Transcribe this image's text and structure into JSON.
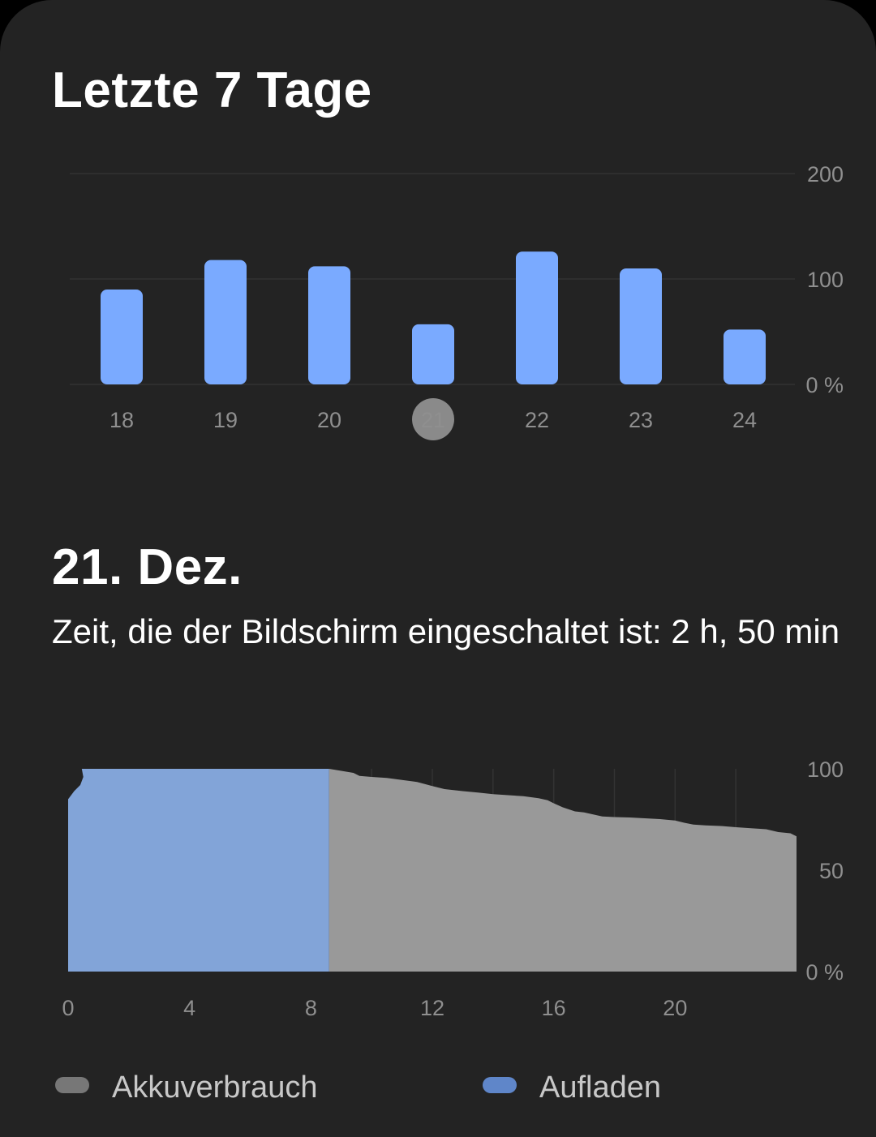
{
  "colors": {
    "background": "#232323",
    "bar": "#7aaaff",
    "charging": "#82a4d8",
    "usage": "#999999",
    "selected_day_badge": "#8a8a8a",
    "tick_text": "#8f8f8f",
    "gridline": "#333333"
  },
  "week": {
    "title": "Letzte 7 Tage"
  },
  "day": {
    "title": "21. Dez.",
    "screen_time": "Zeit, die der Bildschirm eingeschaltet ist: 2 h, 50 min"
  },
  "legend": {
    "usage_label": "Akkuverbrauch",
    "charging_label": "Aufladen"
  },
  "chart_data": [
    {
      "type": "bar",
      "categories": [
        "18",
        "19",
        "20",
        "21",
        "22",
        "23",
        "24"
      ],
      "values": [
        90,
        118,
        112,
        57,
        126,
        110,
        52
      ],
      "selected_category": "21",
      "ylim": [
        0,
        200
      ],
      "yticks": [
        {
          "value": 200,
          "label": "200"
        },
        {
          "value": 100,
          "label": "100"
        },
        {
          "value": 0,
          "label": "0 %"
        }
      ],
      "grid": true
    },
    {
      "type": "area",
      "xlim": [
        0,
        24
      ],
      "ylim": [
        0,
        100
      ],
      "xticks": [
        {
          "value": 0,
          "label": "0"
        },
        {
          "value": 4,
          "label": "4"
        },
        {
          "value": 8,
          "label": "8"
        },
        {
          "value": 12,
          "label": "12"
        },
        {
          "value": 16,
          "label": "16"
        },
        {
          "value": 20,
          "label": "20"
        }
      ],
      "yticks": [
        {
          "value": 100,
          "label": "100"
        },
        {
          "value": 50,
          "label": "50"
        },
        {
          "value": 0,
          "label": "0 %"
        }
      ],
      "grid": true,
      "series": [
        {
          "name": "Aufladen",
          "points": [
            [
              0,
              85
            ],
            [
              0.2,
              89
            ],
            [
              0.4,
              92
            ],
            [
              0.5,
              96
            ],
            [
              0.45,
              100
            ],
            [
              8.6,
              100
            ]
          ]
        },
        {
          "name": "Akkuverbrauch",
          "points": [
            [
              8.6,
              100
            ],
            [
              9.0,
              99
            ],
            [
              9.4,
              98
            ],
            [
              9.6,
              96.5
            ],
            [
              10.0,
              96
            ],
            [
              10.5,
              95.5
            ],
            [
              11.0,
              94.5
            ],
            [
              11.5,
              93.5
            ],
            [
              12.0,
              91.5
            ],
            [
              12.4,
              90
            ],
            [
              13.0,
              89
            ],
            [
              13.5,
              88.3
            ],
            [
              14.0,
              87.5
            ],
            [
              14.5,
              87
            ],
            [
              15.0,
              86.5
            ],
            [
              15.5,
              85.5
            ],
            [
              15.8,
              84.5
            ],
            [
              16.0,
              83
            ],
            [
              16.3,
              81
            ],
            [
              16.7,
              79
            ],
            [
              17.0,
              78.5
            ],
            [
              17.3,
              77.5
            ],
            [
              17.6,
              76.5
            ],
            [
              18.0,
              76.2
            ],
            [
              18.5,
              76
            ],
            [
              19.0,
              75.6
            ],
            [
              19.5,
              75.2
            ],
            [
              20.0,
              74.5
            ],
            [
              20.3,
              73.4
            ],
            [
              20.6,
              72.5
            ],
            [
              21.0,
              72.1
            ],
            [
              21.5,
              71.8
            ],
            [
              22.0,
              71.2
            ],
            [
              22.5,
              70.7
            ],
            [
              23.0,
              70.2
            ],
            [
              23.4,
              68.8
            ],
            [
              23.8,
              68.2
            ],
            [
              24.0,
              66.7
            ]
          ]
        }
      ]
    }
  ]
}
